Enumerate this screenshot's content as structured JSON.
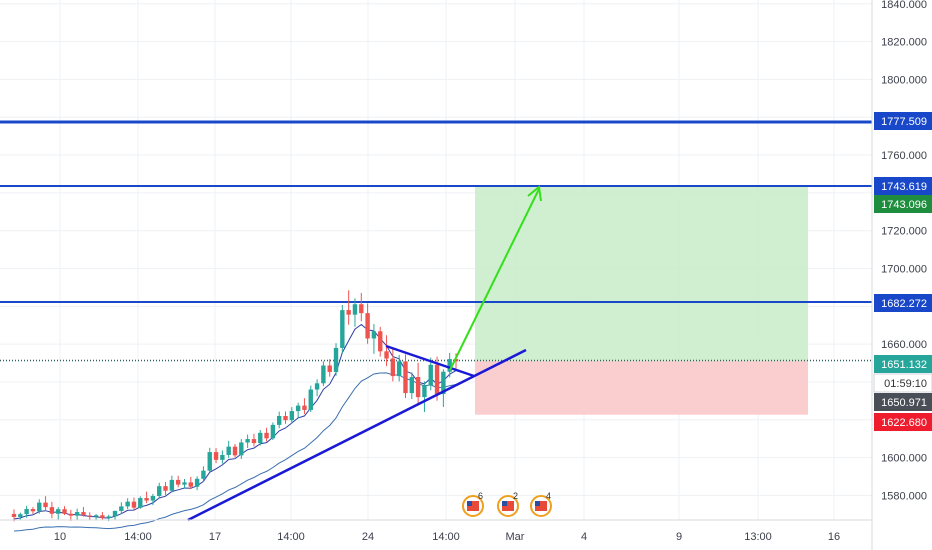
{
  "colors": {
    "background": "#ffffff",
    "grid": "#eef1f5",
    "up": "#26a69a",
    "down": "#ef5350",
    "horizontal_line": "#1848c9",
    "trendline": "#1a1ad6",
    "ma_fast": "#2b3fa6",
    "ma_slow": "#3a6fb0",
    "target_zone": "#c8ecc8",
    "stop_zone": "#f9c9c9",
    "arrow": "#33e01a"
  },
  "chart_data": {
    "type": "candlestick",
    "y_axis": {
      "range": [
        1567,
        1842
      ],
      "ticks": [
        "1840.000",
        "1820.000",
        "1800.000",
        "1780.000",
        "1760.000",
        "1740.000",
        "1720.000",
        "1700.000",
        "1680.000",
        "1660.000",
        "1640.000",
        "1620.000",
        "1600.000",
        "1580.000"
      ]
    },
    "x_axis": {
      "labels": [
        "10",
        "14:00",
        "17",
        "14:00",
        "24",
        "14:00",
        "Mar",
        "4",
        "9",
        "13:00",
        "16"
      ]
    },
    "price_badges": [
      {
        "label": "1777.509",
        "color": "#1848c9"
      },
      {
        "label": "1743.619",
        "color": "#1848c9"
      },
      {
        "label": "1743.096",
        "color": "#1e8e3e"
      },
      {
        "label": "1682.272",
        "color": "#1848c9"
      },
      {
        "label": "1651.132",
        "color": "#26a69a"
      },
      {
        "label": "01:59:10",
        "color": "#ffffff"
      },
      {
        "label": "1650.971",
        "color": "#4a4e57"
      },
      {
        "label": "1622.680",
        "color": "#ef1c2e"
      }
    ],
    "horizontal_lines": [
      {
        "value": 1777.509,
        "label": "1777.509"
      },
      {
        "value": 1743.619,
        "label": "1743.619"
      },
      {
        "value": 1682.272,
        "label": "1682.272"
      }
    ],
    "position_tool": {
      "entry": 1651.132,
      "target": 1743.096,
      "stop": 1622.68
    },
    "trade_idea": {
      "breakout": "up",
      "projected_target": 1743.619
    },
    "moving_averages": [
      "fast",
      "slow"
    ],
    "event_markers": [
      {
        "icon": "us-flag-icon",
        "count": "6"
      },
      {
        "icon": "us-flag-icon",
        "count": "2"
      },
      {
        "icon": "us-flag-icon",
        "count": "4"
      }
    ],
    "candles": [
      [
        1570.2,
        1572.6,
        1566.3,
        1568.6
      ],
      [
        1568.6,
        1570.9,
        1567.0,
        1570.1
      ],
      [
        1570.1,
        1574.5,
        1568.2,
        1572.8
      ],
      [
        1572.8,
        1573.8,
        1570.2,
        1571.6
      ],
      [
        1571.6,
        1578.0,
        1570.3,
        1576.2
      ],
      [
        1576.2,
        1579.6,
        1572.3,
        1573.8
      ],
      [
        1573.8,
        1576.6,
        1567.9,
        1570.3
      ],
      [
        1570.3,
        1573.8,
        1567.3,
        1572.7
      ],
      [
        1572.7,
        1574.3,
        1569.6,
        1570.3
      ],
      [
        1570.3,
        1572.4,
        1566.5,
        1569.3
      ],
      [
        1569.3,
        1573.0,
        1567.0,
        1571.2
      ],
      [
        1571.2,
        1573.9,
        1568.8,
        1569.4
      ],
      [
        1569.4,
        1571.1,
        1566.8,
        1568.8
      ],
      [
        1568.8,
        1570.2,
        1566.7,
        1569.5
      ],
      [
        1569.5,
        1571.2,
        1567.1,
        1568.1
      ],
      [
        1568.1,
        1569.8,
        1566.4,
        1568.9
      ],
      [
        1568.9,
        1572.0,
        1567.3,
        1571.8
      ],
      [
        1571.8,
        1576.4,
        1570.2,
        1574.2
      ],
      [
        1574.2,
        1578.5,
        1572.8,
        1576.7
      ],
      [
        1576.7,
        1578.9,
        1572.1,
        1573.5
      ],
      [
        1573.5,
        1579.5,
        1572.9,
        1578.6
      ],
      [
        1578.6,
        1582.0,
        1575.9,
        1577.3
      ],
      [
        1577.3,
        1580.8,
        1574.9,
        1579.7
      ],
      [
        1579.7,
        1586.7,
        1578.3,
        1584.9
      ],
      [
        1584.9,
        1587.1,
        1580.2,
        1582.5
      ],
      [
        1582.5,
        1590.4,
        1581.6,
        1588.2
      ],
      [
        1588.2,
        1590.4,
        1584.3,
        1585.7
      ],
      [
        1585.7,
        1588.7,
        1583.6,
        1586.9
      ],
      [
        1586.9,
        1589.8,
        1583.3,
        1584.6
      ],
      [
        1584.6,
        1590.1,
        1582.8,
        1588.8
      ],
      [
        1588.8,
        1595.4,
        1587.4,
        1593.1
      ],
      [
        1593.1,
        1605.2,
        1592.2,
        1602.9
      ],
      [
        1602.9,
        1605.0,
        1597.1,
        1598.8
      ],
      [
        1598.8,
        1603.8,
        1596.8,
        1601.4
      ],
      [
        1601.4,
        1608.9,
        1599.8,
        1605.8
      ],
      [
        1605.8,
        1607.2,
        1600.1,
        1601.2
      ],
      [
        1601.2,
        1609.8,
        1599.3,
        1608.0
      ],
      [
        1608.0,
        1612.2,
        1605.1,
        1609.8
      ],
      [
        1609.8,
        1612.6,
        1605.9,
        1607.7
      ],
      [
        1607.7,
        1614.6,
        1606.4,
        1613.1
      ],
      [
        1613.1,
        1615.8,
        1608.5,
        1610.2
      ],
      [
        1610.2,
        1618.6,
        1609.3,
        1617.3
      ],
      [
        1617.3,
        1624.3,
        1615.5,
        1622.0
      ],
      [
        1622.0,
        1624.4,
        1617.9,
        1619.8
      ],
      [
        1619.8,
        1626.7,
        1618.1,
        1624.6
      ],
      [
        1624.6,
        1629.0,
        1621.2,
        1627.5
      ],
      [
        1627.5,
        1631.4,
        1623.0,
        1625.2
      ],
      [
        1625.2,
        1638.1,
        1624.1,
        1636.0
      ],
      [
        1636.0,
        1641.4,
        1632.4,
        1639.3
      ],
      [
        1639.3,
        1650.9,
        1637.8,
        1648.7
      ],
      [
        1648.7,
        1652.0,
        1642.8,
        1645.3
      ],
      [
        1645.3,
        1660.5,
        1643.3,
        1658.0
      ],
      [
        1658.0,
        1680.7,
        1655.3,
        1678.0
      ],
      [
        1678.0,
        1688.5,
        1670.3,
        1675.6
      ],
      [
        1675.6,
        1684.2,
        1669.2,
        1681.1
      ],
      [
        1681.1,
        1687.1,
        1672.1,
        1676.4
      ],
      [
        1676.4,
        1681.5,
        1660.2,
        1663.0
      ],
      [
        1663.0,
        1670.6,
        1654.9,
        1666.8
      ],
      [
        1666.8,
        1669.1,
        1653.4,
        1656.2
      ],
      [
        1656.2,
        1664.7,
        1648.4,
        1652.4
      ],
      [
        1652.4,
        1658.1,
        1640.3,
        1643.1
      ],
      [
        1643.1,
        1654.3,
        1640.3,
        1650.9
      ],
      [
        1650.9,
        1654.6,
        1631.5,
        1634.1
      ],
      [
        1634.1,
        1645.1,
        1631.0,
        1642.6
      ],
      [
        1642.6,
        1650.1,
        1628.5,
        1632.0
      ],
      [
        1632.0,
        1640.3,
        1624.1,
        1638.1
      ],
      [
        1638.1,
        1652.9,
        1635.6,
        1649.1
      ],
      [
        1649.1,
        1653.4,
        1630.1,
        1633.6
      ],
      [
        1633.6,
        1646.7,
        1626.8,
        1645.4
      ],
      [
        1645.4,
        1655.4,
        1642.4,
        1652.1
      ],
      [
        1652.1,
        1655.1,
        1646.1,
        1650.9
      ]
    ]
  }
}
